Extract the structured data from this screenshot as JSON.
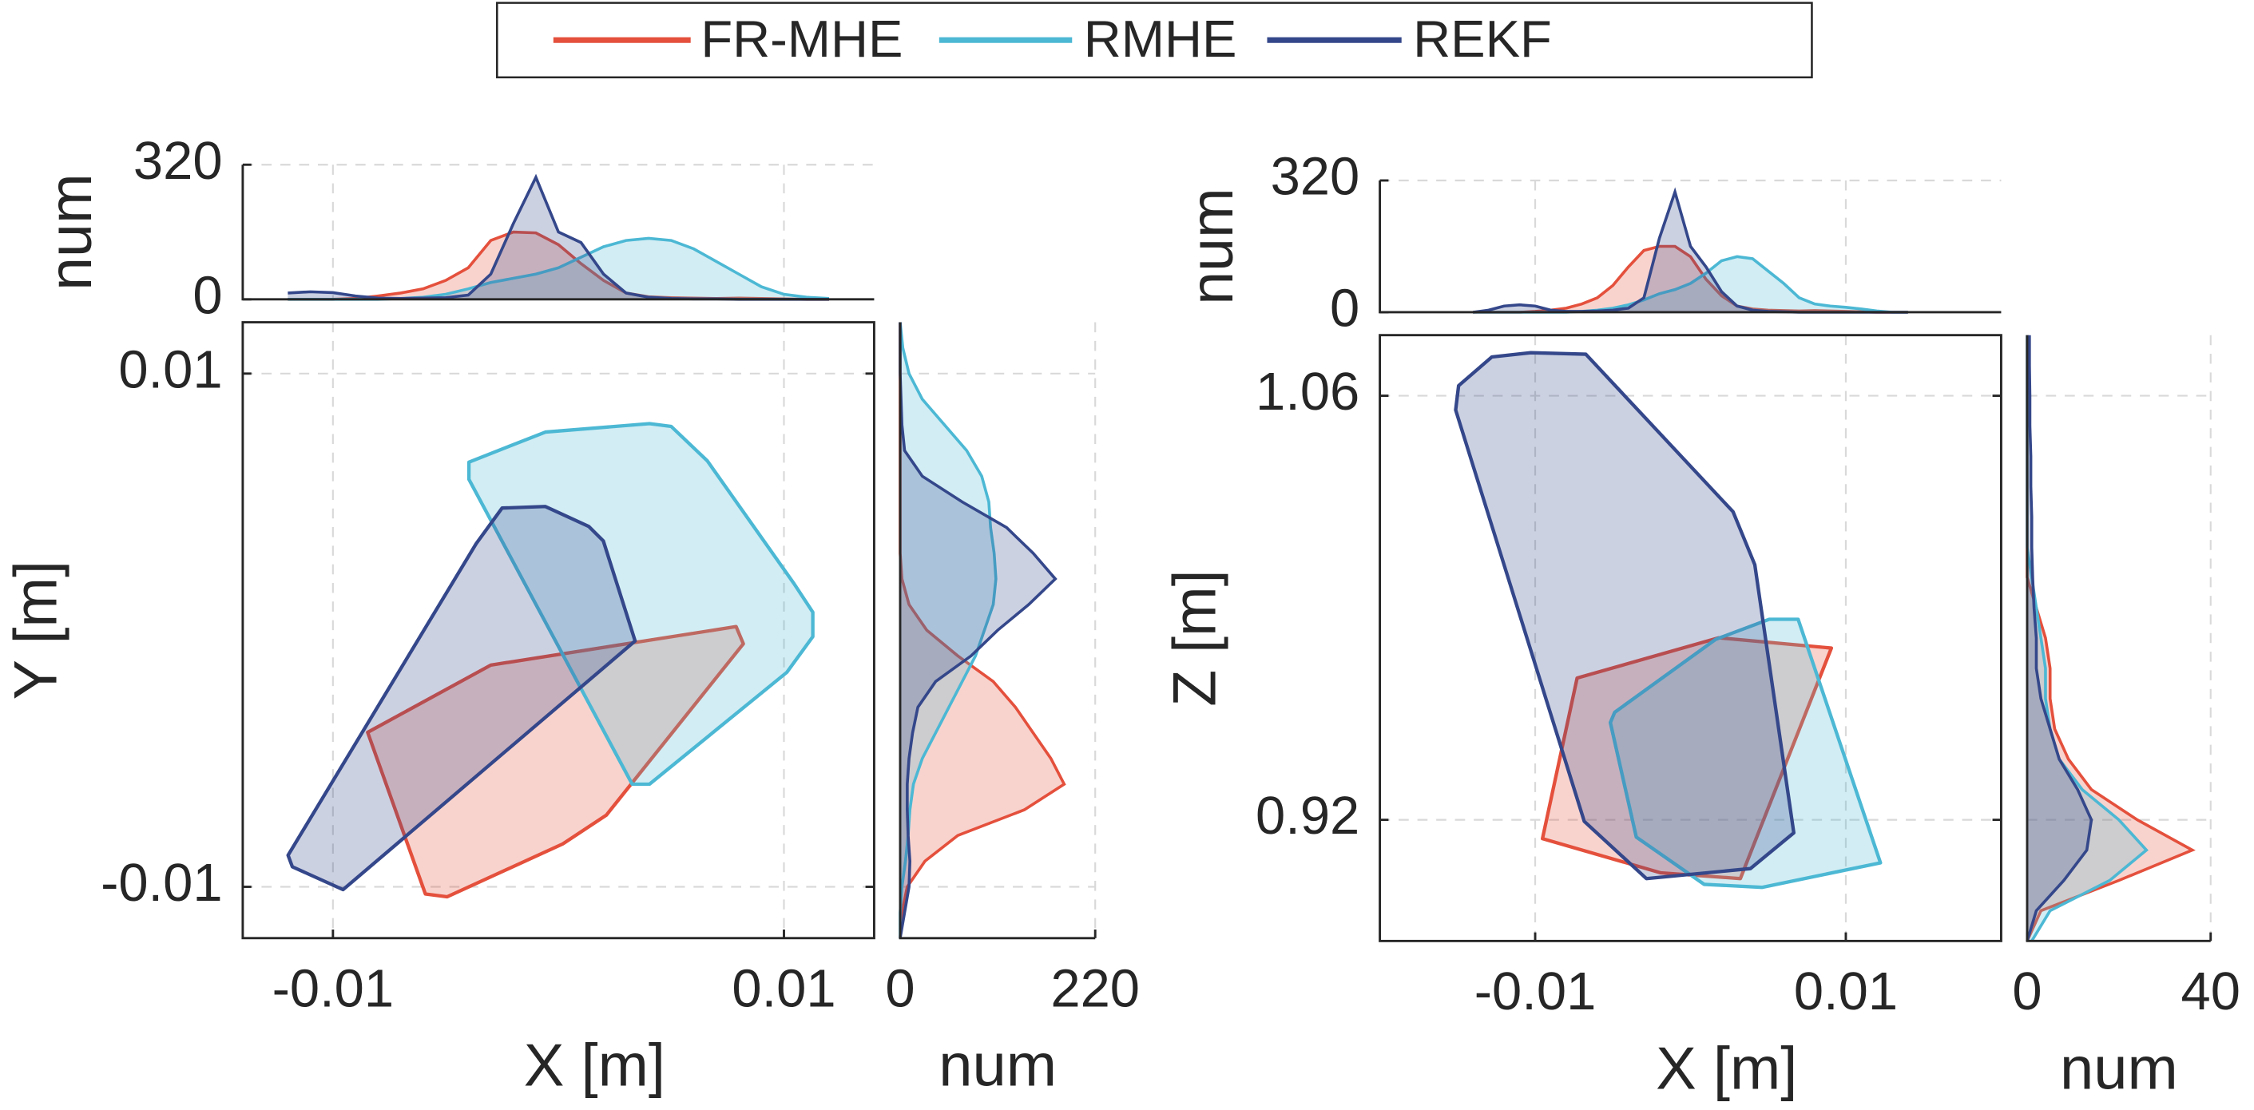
{
  "chart_data": {
    "type": "hull-marginal",
    "series": [
      {
        "name": "FR-MHE",
        "color": "#e4503c"
      },
      {
        "name": "RMHE",
        "color": "#4cb8d4"
      },
      {
        "name": "REKF",
        "color": "#34478a"
      }
    ],
    "panels": [
      {
        "main": {
          "xlabel": "X [m]",
          "ylabel": "Y [m]",
          "xlim": [
            -0.014,
            0.014
          ],
          "ylim": [
            -0.012,
            0.012
          ],
          "xticks": [
            -0.01,
            0.01
          ],
          "yticks": [
            -0.01,
            0.01
          ],
          "series": [
            {
              "x": [
                -0.00846,
                -0.003,
                0.00788,
                0.0082,
                0.00212,
                0.00019,
                -0.00494,
                -0.0059
              ],
              "y": [
                -0.00398,
                -0.00136,
                0.00014,
                -0.00053,
                -0.00721,
                -0.00833,
                -0.01039,
                -0.01028
              ]
            },
            {
              "x": [
                -0.00397,
                -0.00058,
                0.00404,
                0.005,
                0.0066,
                0.01045,
                0.01128,
                0.01128,
                0.01013,
                0.00404,
                0.00327,
                -0.00397
              ],
              "y": [
                0.00655,
                0.00772,
                0.00805,
                0.00794,
                0.0066,
                0.00181,
                0.0007,
                -0.00025,
                -0.00164,
                -0.006,
                -0.006,
                0.00588
              ]
            },
            {
              "x": [
                -0.0025,
                -0.00058,
                0.00135,
                0.00199,
                0.0034,
                -0.00955,
                -0.0118,
                -0.01199,
                -0.00365
              ],
              "y": [
                0.00476,
                0.00482,
                0.00404,
                0.00348,
                -0.00042,
                -0.01011,
                -0.00922,
                -0.00877,
                0.00337
              ]
            }
          ]
        },
        "top": {
          "ylabel": "num",
          "ylim": [
            0,
            320
          ],
          "yticks": [
            0,
            320
          ],
          "x": [
            -0.012,
            -0.011,
            -0.01,
            -0.009,
            -0.008,
            -0.007,
            -0.006,
            -0.005,
            -0.004,
            -0.003,
            -0.002,
            -0.001,
            0,
            0.001,
            0.002,
            0.003,
            0.004,
            0.005,
            0.006,
            0.007,
            0.008,
            0.009,
            0.01,
            0.011,
            0.012
          ],
          "series": [
            {
              "values": [
                0,
                0,
                0,
                2,
                8,
                15,
                25,
                45,
                75,
                140,
                160,
                158,
                130,
                85,
                45,
                15,
                6,
                4,
                3,
                2,
                3,
                2,
                1,
                0,
                0
              ]
            },
            {
              "values": [
                0,
                0,
                0,
                0,
                0,
                2,
                5,
                12,
                25,
                40,
                50,
                60,
                75,
                100,
                125,
                140,
                145,
                140,
                120,
                90,
                60,
                30,
                12,
                5,
                2
              ]
            },
            {
              "values": [
                15,
                18,
                16,
                8,
                3,
                2,
                3,
                4,
                10,
                60,
                180,
                290,
                160,
                135,
                60,
                15,
                5,
                2,
                1,
                1,
                0,
                0,
                0,
                0,
                0
              ]
            }
          ]
        },
        "right": {
          "xlabel": "num",
          "xlim": [
            0,
            220
          ],
          "xticks": [
            0,
            220
          ],
          "y": [
            -0.012,
            -0.011,
            -0.01,
            -0.009,
            -0.008,
            -0.007,
            -0.006,
            -0.005,
            -0.004,
            -0.003,
            -0.002,
            -0.001,
            0,
            0.001,
            0.002,
            0.003,
            0.004,
            0.005,
            0.006,
            0.007,
            0.008,
            0.009,
            0.01,
            0.011,
            0.012
          ],
          "series": [
            {
              "values": [
                0,
                2,
                8,
                28,
                65,
                140,
                185,
                170,
                150,
                130,
                105,
                65,
                30,
                10,
                2,
                0,
                0,
                0,
                0,
                0,
                0,
                0,
                0,
                0,
                0
              ]
            },
            {
              "values": [
                0,
                0,
                2,
                6,
                9,
                11,
                15,
                25,
                40,
                55,
                70,
                85,
                95,
                105,
                108,
                106,
                102,
                100,
                92,
                75,
                50,
                25,
                10,
                3,
                0
              ]
            },
            {
              "values": [
                0,
                5,
                10,
                11,
                9,
                8,
                8,
                10,
                14,
                20,
                40,
                80,
                110,
                145,
                175,
                150,
                120,
                70,
                25,
                5,
                2,
                1,
                0,
                0,
                0
              ]
            }
          ]
        }
      },
      {
        "main": {
          "xlabel": "X [m]",
          "ylabel": "Z [m]",
          "xlim": [
            -0.02,
            0.02
          ],
          "ylim": [
            0.88,
            1.08
          ],
          "xticks": [
            -0.01,
            0.01
          ],
          "yticks": [
            0.92,
            1.06
          ],
          "series": [
            {
              "x": [
                -0.0073,
                0.00181,
                0.00907,
                0.00321,
                -0.00191,
                -0.00953
              ],
              "y": [
                0.9668,
                0.9801,
                0.9767,
                0.9006,
                0.9025,
                0.9138
              ]
            },
            {
              "x": [
                0.00163,
                0.00507,
                0.00693,
                0.01223,
                0.0046,
                0.00088,
                -0.00349,
                -0.00516,
                -0.00488
              ],
              "y": [
                0.9796,
                0.9862,
                0.9862,
                0.9058,
                0.8977,
                0.8987,
                0.9143,
                0.9521,
                0.9555
              ]
            },
            {
              "x": [
                -0.01279,
                -0.01028,
                -0.00674,
                0.00274,
                0.00414,
                0.00665,
                0.00386,
                -0.00284,
                -0.00684,
                -0.01512,
                -0.01493
              ],
              "y": [
                1.0728,
                1.0742,
                1.0737,
                1.0217,
                1.0042,
                0.9157,
                0.9039,
                0.9006,
                0.9195,
                1.0553,
                1.0633
              ]
            }
          ]
        },
        "top": {
          "ylabel": "num",
          "ylim": [
            0,
            320
          ],
          "yticks": [
            0,
            320
          ],
          "x": [
            -0.014,
            -0.013,
            -0.012,
            -0.011,
            -0.01,
            -0.009,
            -0.008,
            -0.007,
            -0.006,
            -0.005,
            -0.004,
            -0.003,
            -0.002,
            -0.001,
            0,
            0.001,
            0.002,
            0.003,
            0.004,
            0.005,
            0.006,
            0.007,
            0.008,
            0.009,
            0.01,
            0.011,
            0.012,
            0.013,
            0.014
          ],
          "series": [
            {
              "values": [
                0,
                0,
                0,
                0,
                2,
                5,
                10,
                20,
                35,
                65,
                110,
                150,
                160,
                160,
                135,
                80,
                40,
                15,
                8,
                5,
                4,
                3,
                4,
                3,
                2,
                1,
                0,
                0,
                0
              ]
            },
            {
              "values": [
                0,
                0,
                0,
                0,
                0,
                0,
                0,
                2,
                5,
                10,
                18,
                30,
                45,
                55,
                70,
                95,
                125,
                135,
                130,
                100,
                70,
                35,
                20,
                15,
                12,
                8,
                3,
                0,
                0
              ]
            },
            {
              "values": [
                0,
                5,
                15,
                18,
                15,
                5,
                2,
                2,
                3,
                5,
                10,
                35,
                180,
                292,
                160,
                110,
                50,
                15,
                5,
                2,
                1,
                0,
                0,
                0,
                0,
                0,
                0,
                0,
                0
              ]
            }
          ]
        },
        "right": {
          "xlabel": "num",
          "xlim": [
            0,
            40
          ],
          "xticks": [
            0,
            40
          ],
          "y": [
            0.88,
            0.89,
            0.9,
            0.91,
            0.92,
            0.93,
            0.94,
            0.95,
            0.96,
            0.97,
            0.98,
            0.99,
            1.0,
            1.01,
            1.02,
            1.03,
            1.04,
            1.05,
            1.06,
            1.07,
            1.08
          ],
          "series": [
            {
              "values": [
                0,
                3,
                20,
                36,
                24,
                14,
                9,
                6,
                5,
                5,
                4,
                2,
                0,
                0,
                0,
                0,
                0,
                0,
                0,
                0,
                0
              ]
            },
            {
              "values": [
                1,
                5,
                18,
                26,
                20,
                12,
                7,
                5,
                4,
                4,
                3,
                2,
                1,
                0,
                0,
                0,
                0,
                0,
                0,
                0,
                0
              ]
            },
            {
              "values": [
                0,
                2,
                8,
                13,
                14,
                11,
                7,
                5,
                3,
                2,
                2,
                1.5,
                1.2,
                1,
                1,
                0.8,
                0.8,
                0.6,
                0.6,
                0.5,
                0.5
              ]
            }
          ]
        }
      }
    ]
  }
}
